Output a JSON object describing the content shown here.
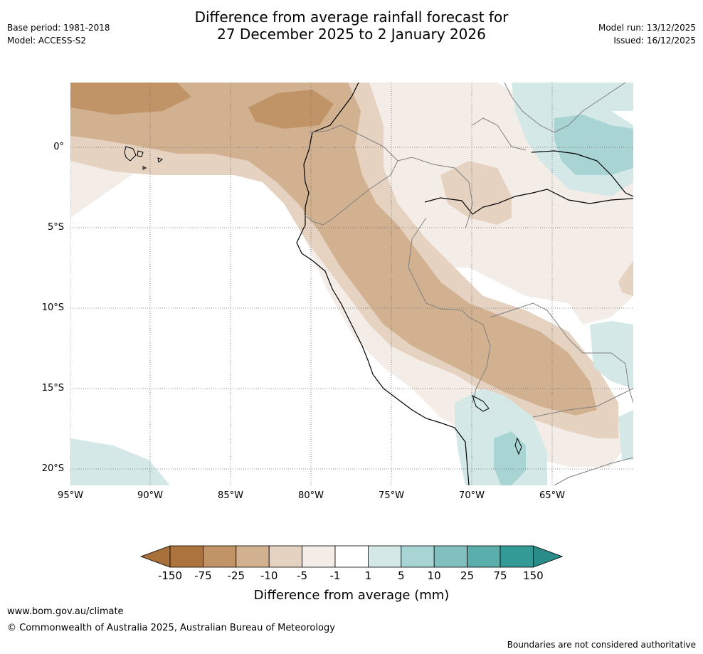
{
  "header": {
    "title_line1": "Difference from average rainfall forecast for",
    "title_line2": "27 December 2025 to 2 January 2026",
    "base_period": "Base period: 1981-2018",
    "model": "Model: ACCESS-S2",
    "model_run": "Model run: 13/12/2025",
    "issued": "Issued: 16/12/2025"
  },
  "map": {
    "lat_labels": [
      "0°",
      "5°S",
      "10°S",
      "15°S",
      "20°S"
    ],
    "lon_labels": [
      "95°W",
      "90°W",
      "85°W",
      "80°W",
      "75°W",
      "70°W",
      "65°W"
    ]
  },
  "legend": {
    "title": "Difference from average (mm)",
    "ticks": [
      "-150",
      "-75",
      "-25",
      "-10",
      "-5",
      "-1",
      "1",
      "5",
      "10",
      "25",
      "75",
      "150"
    ],
    "colors": [
      "#a8703a",
      "#ad733e",
      "#c19468",
      "#d2b190",
      "#e5d2c0",
      "#f4ede7",
      "#ffffff",
      "#d4e8e8",
      "#a8d4d4",
      "#81c0be",
      "#5aaeab",
      "#349a96",
      "#2a8c88"
    ]
  },
  "footer": {
    "url": "www.bom.gov.au/climate",
    "copyright": "© Commonwealth of Australia 2025, Australian Bureau of Meteorology",
    "disclaimer": "Boundaries are not considered authoritative"
  }
}
